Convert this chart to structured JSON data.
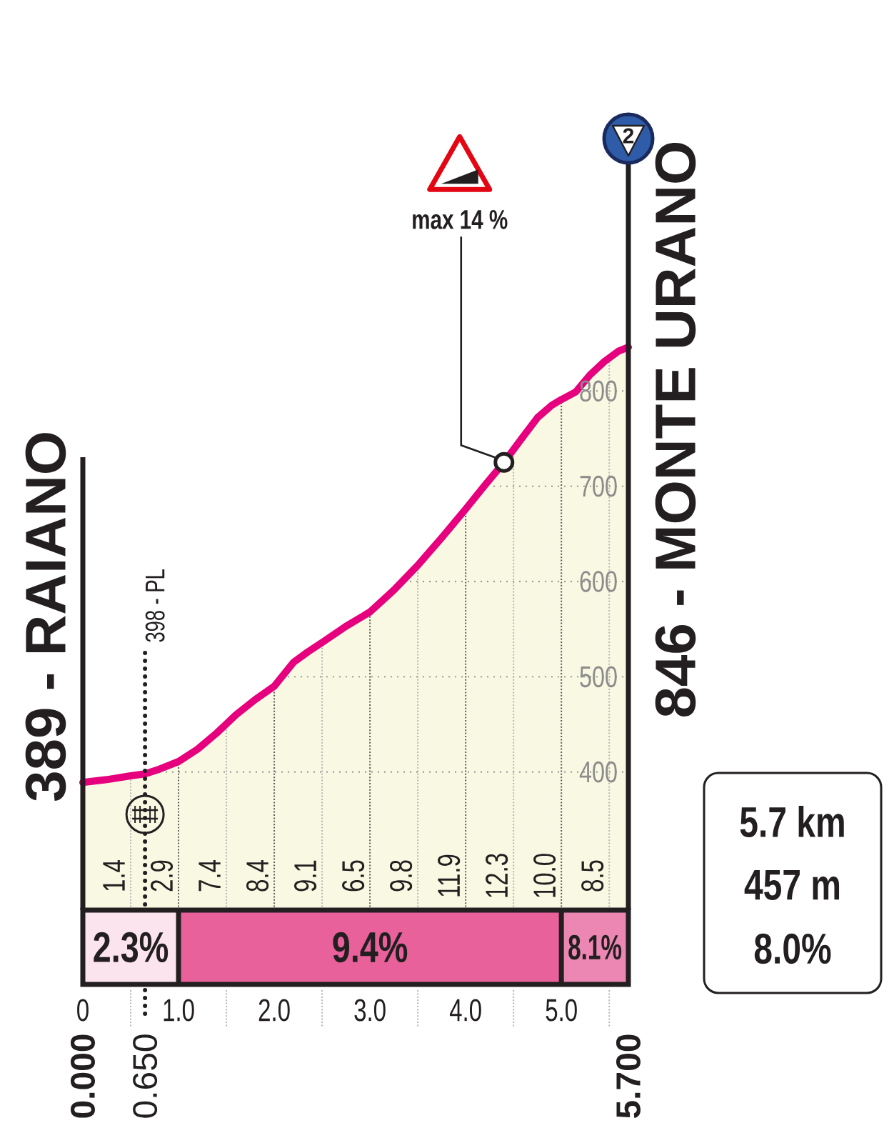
{
  "chart_data": [
    {
      "type": "area",
      "x": [
        0,
        0.25,
        0.5,
        0.65,
        0.8,
        1.0,
        1.2,
        1.4,
        1.6,
        1.8,
        2.0,
        2.2,
        2.35,
        2.5,
        2.75,
        3.0,
        3.25,
        3.5,
        3.75,
        4.0,
        4.2,
        4.4,
        4.6,
        4.75,
        4.9,
        5.0,
        5.15,
        5.3,
        5.45,
        5.6,
        5.7
      ],
      "values": [
        389,
        392,
        396,
        398,
        403,
        411,
        424,
        441,
        460,
        476,
        490,
        515,
        526,
        536,
        553,
        568,
        591,
        617,
        646,
        676,
        701,
        725,
        752,
        772,
        785,
        791,
        799,
        817,
        831,
        842,
        846
      ],
      "color": "#e6007e",
      "xlim": [
        0,
        5.7
      ],
      "ylim": [
        255,
        1038
      ],
      "xticks": [
        {
          "value": 0,
          "label": null
        },
        {
          "value": 0.5,
          "label": null
        },
        {
          "value": 1,
          "label": null
        },
        {
          "value": 1.5,
          "label": null
        },
        {
          "value": 2,
          "label": null
        },
        {
          "value": 2.5,
          "label": null
        },
        {
          "value": 3,
          "label": null
        },
        {
          "value": 3.5,
          "label": null
        },
        {
          "value": 4,
          "label": null
        },
        {
          "value": 4.5,
          "label": null
        },
        {
          "value": 5,
          "label": null
        },
        {
          "value": 5.5,
          "label": null
        }
      ],
      "yticks": [
        400,
        500,
        600,
        700,
        800
      ],
      "tick_labels": "y",
      "grid": true,
      "ref_lines": [
        {
          "axis": "x",
          "value": 0.65,
          "label": "398 - PL",
          "color": "#231f20",
          "line_style": "dotted"
        }
      ],
      "annotations": [
        {
          "text": "389 - RAIANO",
          "x": 0,
          "y": 389
        },
        {
          "text": "846 - MONTE URANO",
          "x": 5.7,
          "y": 846
        },
        {
          "text": "max 14 %",
          "x": 4.4,
          "y": 725
        },
        "2",
        "0.000",
        "0.650",
        "5.700",
        "1.4",
        "2.9",
        "7.4",
        "8.4",
        "9.1",
        "6.5",
        "9.8",
        "11.9",
        "12.3",
        "10.0",
        "8.5",
        "5.7 km",
        "457 m",
        "8.0%"
      ]
    },
    {
      "type": "bar",
      "orientation": "horizontal",
      "stacked": true,
      "categories": [
        null
      ],
      "series": [
        {
          "name": "2.3%",
          "color": "#fce4ef",
          "values": [
            1.0
          ]
        },
        {
          "name": "9.4%",
          "color": "#e8619b",
          "values": [
            4.0
          ]
        },
        {
          "name": "8.1%",
          "color": "#eb87b2",
          "values": [
            0.7
          ]
        }
      ],
      "xlim": [
        0,
        5.7
      ],
      "xticks": [
        0,
        {
          "value": 1,
          "label": "1.0"
        },
        {
          "value": 2,
          "label": "2.0"
        },
        {
          "value": 3,
          "label": "3.0"
        },
        {
          "value": 4,
          "label": "4.0"
        },
        {
          "value": 5,
          "label": "5.0"
        }
      ],
      "tick_labels": "x"
    }
  ]
}
